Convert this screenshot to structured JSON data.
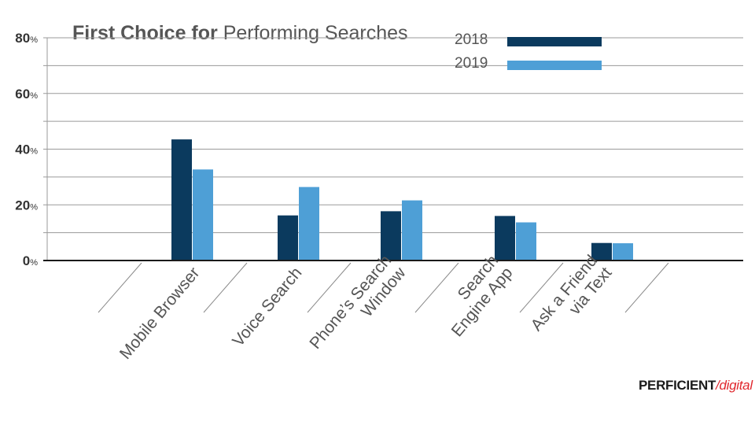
{
  "chart_data": {
    "type": "bar",
    "title_bold": "First Choice for",
    "title_rest": "Performing Searches",
    "categories": [
      [
        "Mobile Browser"
      ],
      [
        "Voice Search"
      ],
      [
        "Phone’s Search",
        "Window"
      ],
      [
        "Search",
        "Engine App"
      ],
      [
        "Ask a Friend",
        "via Text"
      ]
    ],
    "series": [
      {
        "name": "2018",
        "color": "#0b3a5e",
        "values": [
          43.5,
          16.2,
          17.7,
          16.0,
          6.3
        ]
      },
      {
        "name": "2019",
        "color": "#4e9fd6",
        "values": [
          32.7,
          26.4,
          21.6,
          13.7,
          6.2
        ]
      }
    ],
    "y_ticks": [
      {
        "value": 0,
        "label": "0",
        "unit": "%"
      },
      {
        "value": 20,
        "label": "20",
        "unit": "%"
      },
      {
        "value": 40,
        "label": "40",
        "unit": "%"
      },
      {
        "value": 60,
        "label": "60",
        "unit": "%"
      },
      {
        "value": 80,
        "label": "80",
        "unit": "%"
      }
    ],
    "ylim": [
      0,
      80
    ],
    "grid": true,
    "legend_position": "top-right",
    "xlabel": "",
    "ylabel": ""
  },
  "brand": {
    "main": "PERFICIENT",
    "separator": "/",
    "sub": "digital",
    "accent_color": "#e0272d"
  }
}
